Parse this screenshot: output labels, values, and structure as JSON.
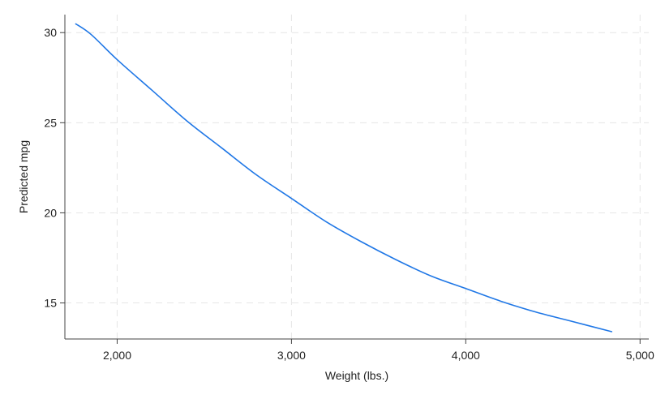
{
  "chart_data": {
    "type": "line",
    "xlabel": "Weight (lbs.)",
    "ylabel": "Predicted mpg",
    "xlim": [
      1700,
      5050
    ],
    "ylim": [
      13,
      31
    ],
    "xticks": [
      2000,
      3000,
      4000,
      5000
    ],
    "xtick_labels": [
      "2,000",
      "3,000",
      "4,000",
      "5,000"
    ],
    "yticks": [
      15,
      20,
      25,
      30
    ],
    "ytick_labels": [
      "15",
      "20",
      "25",
      "30"
    ],
    "grid": true,
    "series": [
      {
        "color": "#1f77e6",
        "x": [
          1760,
          1850,
          2000,
          2200,
          2400,
          2600,
          2800,
          3000,
          3200,
          3400,
          3600,
          3800,
          4000,
          4200,
          4400,
          4600,
          4840
        ],
        "y": [
          30.5,
          29.9,
          28.5,
          26.8,
          25.1,
          23.6,
          22.1,
          20.8,
          19.5,
          18.4,
          17.4,
          16.5,
          15.8,
          15.1,
          14.5,
          14.0,
          13.4
        ]
      }
    ]
  }
}
